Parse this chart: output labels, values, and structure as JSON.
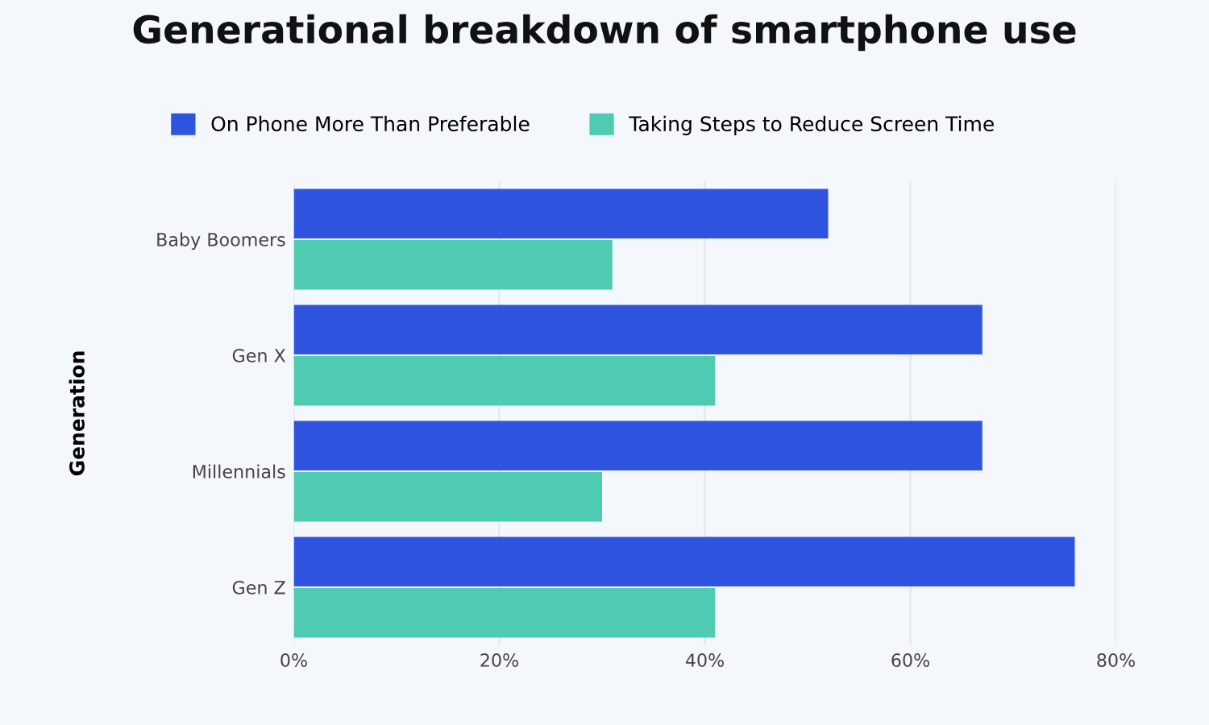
{
  "chart_data": {
    "type": "bar",
    "orientation": "horizontal",
    "title": "Generational breakdown of smartphone use",
    "ylabel": "Generation",
    "categories": [
      "Baby Boomers",
      "Gen X",
      "Millennials",
      "Gen Z"
    ],
    "series": [
      {
        "name": "On Phone More Than Preferable",
        "color": "#2f55e0",
        "values": [
          52,
          67,
          67,
          76
        ]
      },
      {
        "name": "Taking Steps to Reduce Screen Time",
        "color": "#4ecbb0",
        "values": [
          31,
          41,
          30,
          41
        ]
      }
    ],
    "xlim": [
      0,
      80
    ],
    "xticks": [
      {
        "value": 0,
        "label": "0%"
      },
      {
        "value": 20,
        "label": "20%"
      },
      {
        "value": 40,
        "label": "40%"
      },
      {
        "value": 60,
        "label": "60%"
      },
      {
        "value": 80,
        "label": "80%"
      }
    ],
    "grid": "x",
    "legend": "top left"
  }
}
